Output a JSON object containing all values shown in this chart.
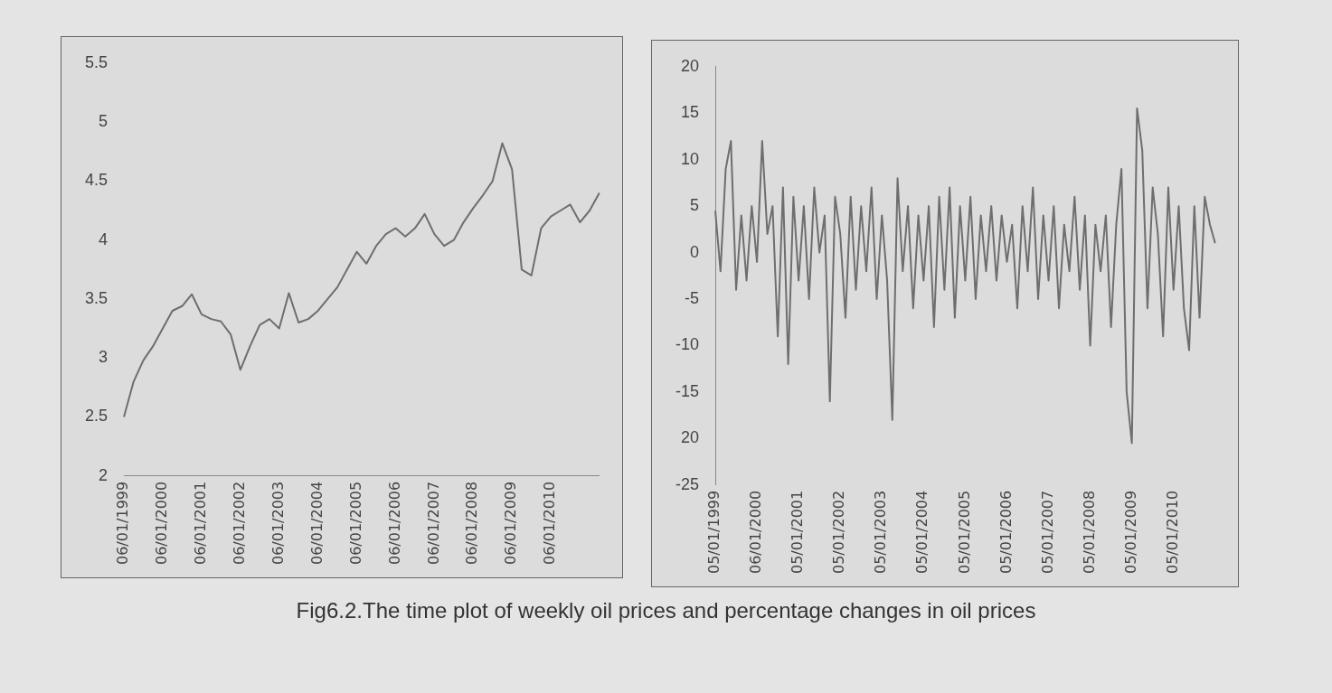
{
  "chart_data": [
    {
      "type": "line",
      "annotations": [
        "Fig6.2.The time plot of weekly oil prices and percentage changes in oil prices"
      ],
      "categories": [
        "06/01/1999",
        null,
        null,
        null,
        "06/01/2000",
        null,
        null,
        null,
        "06/01/2001",
        null,
        null,
        null,
        "06/01/2002",
        null,
        null,
        null,
        "06/01/2003",
        null,
        null,
        null,
        "06/01/2004",
        null,
        null,
        null,
        "06/01/2005",
        null,
        null,
        null,
        "06/01/2006",
        null,
        null,
        null,
        "06/01/2007",
        null,
        null,
        null,
        "06/01/2008",
        null,
        null,
        null,
        "06/01/2009",
        null,
        null,
        null,
        "06/01/2010",
        null,
        null,
        null,
        null,
        null
      ],
      "series": [
        {
          "color": "#6e6e6e",
          "values": [
            2.5,
            2.8,
            2.98,
            3.1,
            3.25,
            3.4,
            3.44,
            3.54,
            3.37,
            3.33,
            3.31,
            3.2,
            2.9,
            3.1,
            3.28,
            3.33,
            3.25,
            3.55,
            3.3,
            3.33,
            3.4,
            3.5,
            3.6,
            3.75,
            3.9,
            3.8,
            3.95,
            4.05,
            4.1,
            4.03,
            4.1,
            4.22,
            4.05,
            3.95,
            4.0,
            4.15,
            4.27,
            4.38,
            4.5,
            4.82,
            4.6,
            3.75,
            3.7,
            4.1,
            4.2,
            4.25,
            4.3,
            4.15,
            4.25,
            4.4
          ]
        }
      ],
      "ylim": [
        2,
        5.5
      ],
      "yticks": [
        2,
        2.5,
        3,
        3.5,
        4,
        4.5,
        5,
        5.5
      ],
      "grid": false,
      "legend": false,
      "marker": "none",
      "line_style": "solid"
    },
    {
      "type": "line",
      "categories": [
        "05/01/1999",
        null,
        null,
        null,
        null,
        null,
        null,
        null,
        "06/01/2000",
        null,
        null,
        null,
        null,
        null,
        null,
        null,
        "05/01/2001",
        null,
        null,
        null,
        null,
        null,
        null,
        null,
        "05/01/2002",
        null,
        null,
        null,
        null,
        null,
        null,
        null,
        "05/01/2003",
        null,
        null,
        null,
        null,
        null,
        null,
        null,
        "05/01/2004",
        null,
        null,
        null,
        null,
        null,
        null,
        null,
        "05/01/2005",
        null,
        null,
        null,
        null,
        null,
        null,
        null,
        "05/01/2006",
        null,
        null,
        null,
        null,
        null,
        null,
        null,
        "05/01/2007",
        null,
        null,
        null,
        null,
        null,
        null,
        null,
        "05/01/2008",
        null,
        null,
        null,
        null,
        null,
        null,
        null,
        "05/01/2009",
        null,
        null,
        null,
        null,
        null,
        null,
        null,
        "05/01/2010",
        null,
        null,
        null,
        null,
        null,
        null,
        null,
        null
      ],
      "series": [
        {
          "color": "#6e6e6e",
          "values": [
            4.5,
            -2,
            9,
            12,
            -4,
            4,
            -3,
            5,
            -1,
            12,
            2,
            5,
            -9,
            7,
            -12,
            6,
            -3,
            5,
            -5,
            7,
            0,
            4,
            -16,
            6,
            2,
            -7,
            6,
            -4,
            5,
            -2,
            7,
            -5,
            4,
            -3,
            -18,
            8,
            -2,
            5,
            -6,
            4,
            -3,
            5,
            -8,
            6,
            -4,
            7,
            -7,
            5,
            -3,
            6,
            -5,
            4,
            -2,
            5,
            -3,
            4,
            -1,
            3,
            -6,
            5,
            -2,
            7,
            -5,
            4,
            -3,
            5,
            -6,
            3,
            -2,
            6,
            -4,
            4,
            -10,
            3,
            -2,
            4,
            -8,
            3,
            9,
            -15,
            -20.5,
            15.5,
            11,
            -6,
            7,
            2,
            -9,
            7,
            -4,
            5,
            -6,
            -10.5,
            5,
            -7,
            6,
            3,
            1
          ]
        }
      ],
      "ylim": [
        -25,
        20
      ],
      "yticks": [
        -25,
        {
          "value": -20,
          "label": "20"
        },
        -15,
        -10,
        -5,
        0,
        5,
        10,
        15,
        20
      ],
      "grid": false,
      "legend": false,
      "marker": "none",
      "line_style": "solid"
    }
  ]
}
